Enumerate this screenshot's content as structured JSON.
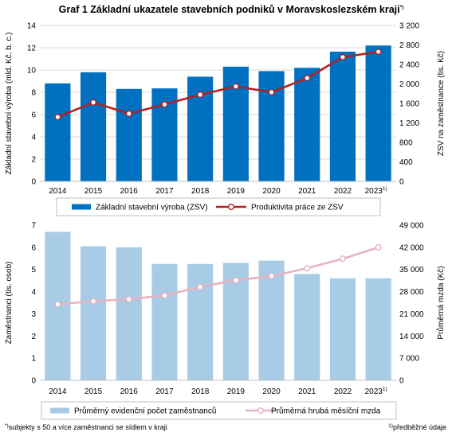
{
  "title": "Graf 1 Základní ukazatele stavebních podniků v Moravskoslezském  kraji",
  "title_sup": "*)",
  "colors": {
    "bar_top": "#0070c0",
    "line_top": "#b22222",
    "bar_bottom": "#a9cce6",
    "line_bottom": "#e7b3bf",
    "grid": "#d9d9d9"
  },
  "chart_data": [
    {
      "type": "bar+line",
      "categories": [
        "2014",
        "2015",
        "2016",
        "2017",
        "2018",
        "2019",
        "2020",
        "2021",
        "2022",
        "2023"
      ],
      "last_category_sup": "1)",
      "series": [
        {
          "name": "Základní stavební výroba (ZSV)",
          "type": "bar",
          "axis": "left",
          "values": [
            8.8,
            9.8,
            8.3,
            8.35,
            9.4,
            10.3,
            9.9,
            10.2,
            11.65,
            12.2
          ]
        },
        {
          "name": "Produktivita práce ze ZSV",
          "type": "line",
          "axis": "right",
          "values": [
            1320,
            1620,
            1390,
            1580,
            1780,
            1950,
            1830,
            2120,
            2550,
            2660
          ]
        }
      ],
      "ylabel_left": "Základní stavební výroba (mld. Kč, b. c.)",
      "ylabel_right": "ZSV na zaměstnance (tis. Kč)",
      "ylim_left": [
        0,
        14
      ],
      "yticks_left": [
        "0",
        "2",
        "4",
        "6",
        "8",
        "10",
        "12",
        "14"
      ],
      "ylim_right": [
        0,
        3200
      ],
      "yticks_right": [
        "0",
        "400",
        "800",
        "1 200",
        "1 600",
        "2 000",
        "2 400",
        "2 800",
        "3 200"
      ],
      "grid": true,
      "legend_position": "bottom"
    },
    {
      "type": "bar+line",
      "categories": [
        "2014",
        "2015",
        "2016",
        "2017",
        "2018",
        "2019",
        "2020",
        "2021",
        "2022",
        "2023"
      ],
      "last_category_sup": "1)",
      "series": [
        {
          "name": "Průměrný evidenční počet zaměstnanců",
          "type": "bar",
          "axis": "left",
          "values": [
            6.7,
            6.05,
            6.0,
            5.25,
            5.25,
            5.3,
            5.4,
            4.8,
            4.6,
            4.6
          ]
        },
        {
          "name": "Průměrná hrubá měsíční mzda",
          "type": "line",
          "axis": "right",
          "values": [
            24000,
            25000,
            25600,
            26800,
            29500,
            31600,
            32900,
            35400,
            38400,
            42000
          ]
        }
      ],
      "ylabel_left": "Zaměstnanci (tis. osob)",
      "ylabel_right": "Průměrná mzda (Kč)",
      "ylim_left": [
        0,
        7
      ],
      "yticks_left": [
        "0",
        "1",
        "2",
        "3",
        "4",
        "5",
        "6",
        "7"
      ],
      "ylim_right": [
        0,
        49000
      ],
      "yticks_right": [
        "0",
        "7 000",
        "14 000",
        "21 000",
        "28 000",
        "35 000",
        "42 000",
        "49 000"
      ],
      "grid": false,
      "legend_position": "bottom"
    }
  ],
  "footnote_left": "subjekty s 50 a více zaměstnanci se sídlem v kraji",
  "footnote_left_mark": "*)",
  "footnote_right": "předběžné údaje",
  "footnote_right_mark": "1)"
}
